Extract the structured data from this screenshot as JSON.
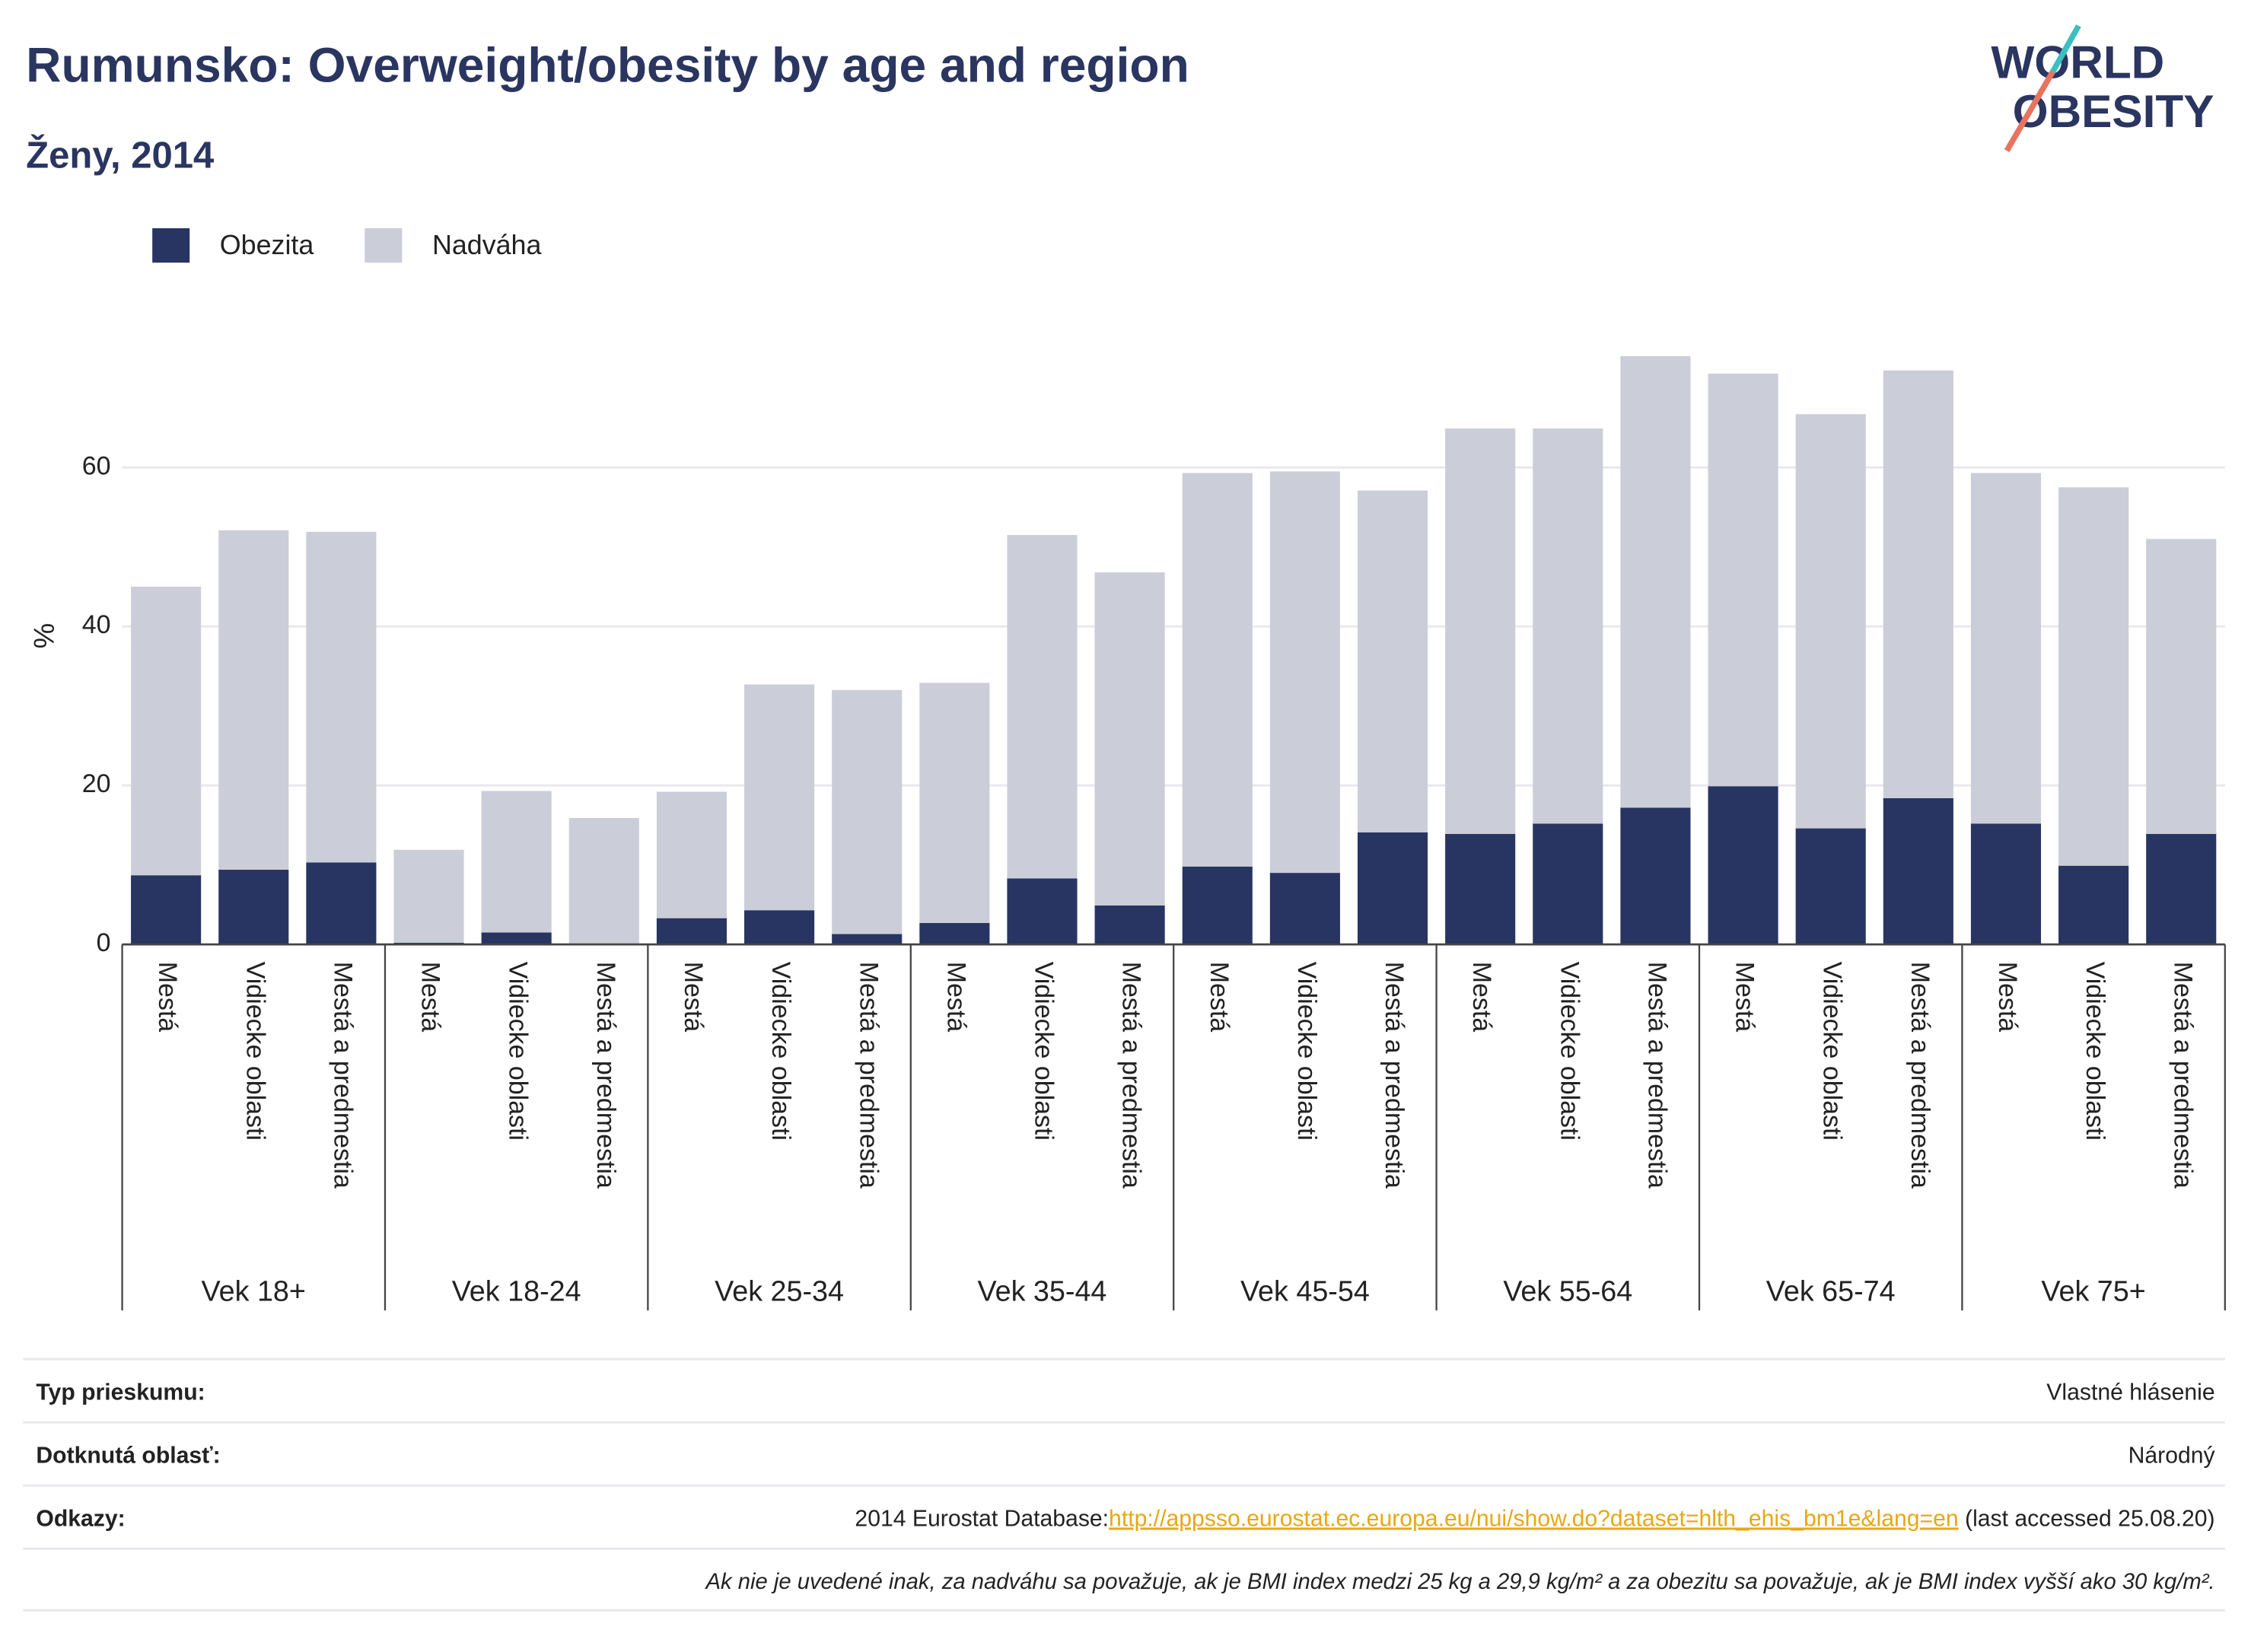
{
  "chart_data": {
    "type": "bar",
    "stacked": true,
    "title": "Rumunsko: Overweight/obesity by age and region",
    "subtitle": "Ženy, 2014",
    "logo": [
      "WORLD",
      "OBESITY"
    ],
    "y_label": "%",
    "groups": [
      "Vek 18+",
      "Vek 18-24",
      "Vek 25-34",
      "Vek 35-44",
      "Vek 45-54",
      "Vek 55-64",
      "Vek 65-74",
      "Vek 75+"
    ],
    "categories": [
      "Mestá",
      "Vidiecke oblasti",
      "Mestá a predmestia",
      "Mestá",
      "Vidiecke oblasti",
      "Mestá a predmestia",
      "Mestá",
      "Vidiecke oblasti",
      "Mestá a predmestia",
      "Mestá",
      "Vidiecke oblasti",
      "Mestá a predmestia",
      "Mestá",
      "Vidiecke oblasti",
      "Mestá a predmestia",
      "Mestá",
      "Vidiecke oblasti",
      "Mestá a predmestia",
      "Mestá",
      "Vidiecke oblasti",
      "Mestá a predmestia",
      "Mestá",
      "Vidiecke oblasti",
      "Mestá a predmestia"
    ],
    "series": [
      {
        "name": "Obezita",
        "color": "#283562",
        "values": [
          8.7,
          9.4,
          10.3,
          0.2,
          1.5,
          0.1,
          3.3,
          4.3,
          1.3,
          2.7,
          8.3,
          4.9,
          9.8,
          9.0,
          14.1,
          13.9,
          15.2,
          17.2,
          19.9,
          14.6,
          18.4,
          15.2,
          9.9,
          13.9
        ]
      },
      {
        "name": "Nadváha",
        "color": "#cbcdd8",
        "values": [
          36.3,
          42.7,
          41.6,
          11.7,
          17.8,
          15.8,
          15.9,
          28.4,
          30.7,
          30.2,
          43.2,
          41.9,
          49.5,
          50.5,
          43.0,
          51.0,
          49.7,
          56.8,
          51.9,
          52.1,
          53.8,
          44.1,
          47.6,
          37.1
        ]
      }
    ],
    "ylim": [
      0,
      78
    ],
    "yticks": [
      0,
      20,
      40,
      60
    ],
    "grid": true,
    "legend": "top-left"
  },
  "footer": {
    "rows": [
      {
        "label": "Typ prieskumu:",
        "value": "Vlastné hlásenie"
      },
      {
        "label": "Dotknutá oblasť:",
        "value": "Národný"
      },
      {
        "label": "Odkazy:",
        "value_prefix": "2014 Eurostat Database:",
        "link": "http://appsso.eurostat.ec.europa.eu/nui/show.do?dataset=hlth_ehis_bm1e&lang=en",
        "value_suffix": " (last accessed 25.08.20)"
      }
    ],
    "note": "Ak nie je uvedené inak, za nadváhu sa považuje, ak je BMI index medzi 25 kg a 29,9 kg/m² a za obezitu sa považuje, ak je BMI index vyšší ako 30 kg/m²."
  }
}
